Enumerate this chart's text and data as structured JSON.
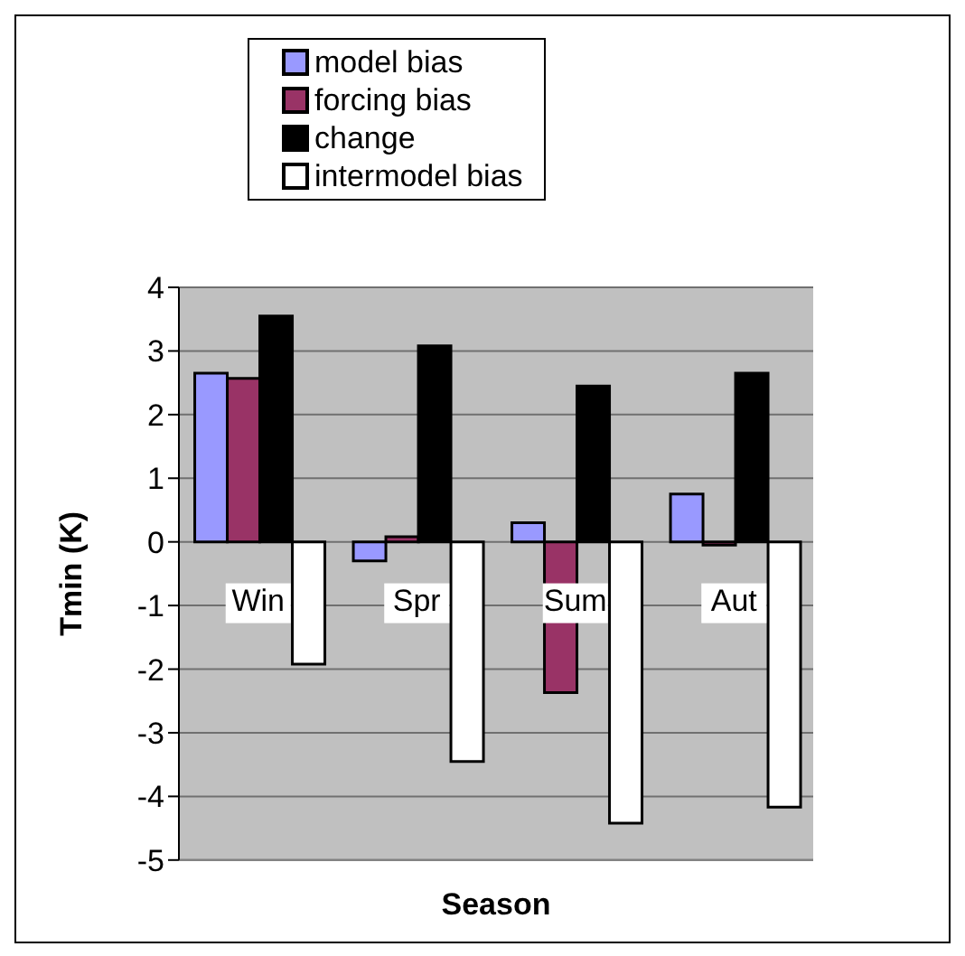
{
  "chart_data": {
    "type": "bar",
    "xlabel": "Season",
    "ylabel": "Tmin (K)",
    "categories": [
      "Win",
      "Spr",
      "Sum",
      "Aut"
    ],
    "series": [
      {
        "name": "model bias",
        "color": "#9999ff",
        "values": [
          2.65,
          -0.3,
          0.3,
          0.75
        ]
      },
      {
        "name": "forcing bias",
        "color": "#993366",
        "values": [
          2.57,
          0.08,
          -2.37,
          -0.05
        ]
      },
      {
        "name": "change",
        "color": "#000000",
        "values": [
          3.55,
          3.08,
          2.45,
          2.65
        ]
      },
      {
        "name": "intermodel bias",
        "color": "#ffffff",
        "values": [
          -1.92,
          -3.45,
          -4.42,
          -4.17
        ]
      }
    ],
    "ylim": [
      -5,
      4
    ],
    "yticks": [
      -5,
      -4,
      -3,
      -2,
      -1,
      0,
      1,
      2,
      3,
      4
    ],
    "grid": "y",
    "legend": "top"
  }
}
